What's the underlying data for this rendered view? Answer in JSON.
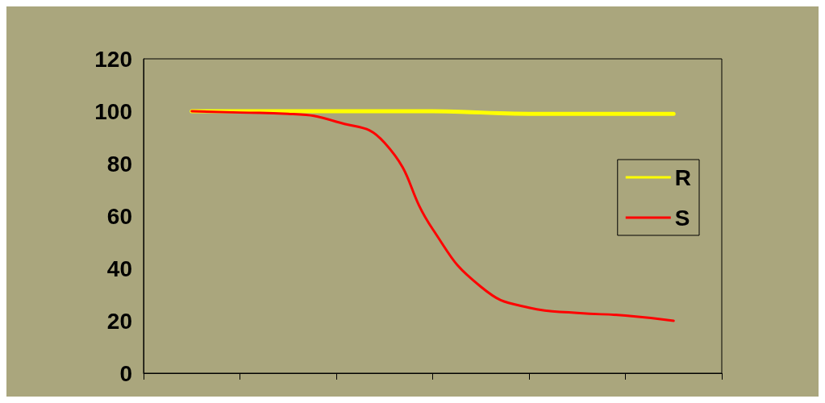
{
  "chart_data": {
    "type": "line",
    "categories": [
      null,
      null,
      null,
      null,
      null,
      null,
      null,
      null,
      null,
      null,
      null,
      null,
      null
    ],
    "series": [
      {
        "name": "R",
        "color": "#ffff00",
        "values": [
          null,
          100,
          100,
          100,
          100,
          100,
          100,
          99.5,
          99,
          99,
          99,
          99,
          null
        ]
      },
      {
        "name": "S",
        "color": "#ff0000",
        "values": [
          null,
          100,
          99.5,
          99,
          96,
          88,
          55,
          33,
          25,
          23,
          22,
          20,
          null
        ]
      }
    ],
    "ylim": [
      0,
      120
    ],
    "yticks": [
      0,
      20,
      40,
      60,
      80,
      100,
      120
    ],
    "grid": false,
    "legend": "right",
    "marker": "none",
    "line_style": "solid",
    "tick_labels": "y"
  }
}
